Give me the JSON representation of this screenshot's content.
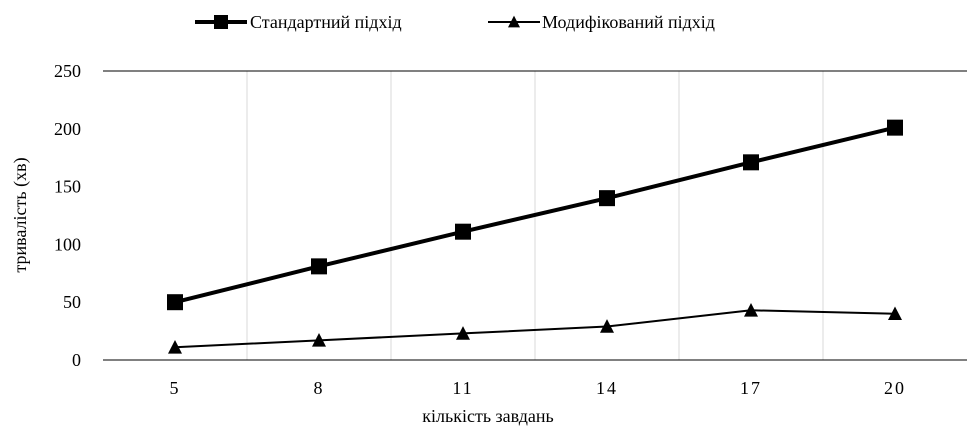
{
  "chart_data": {
    "type": "line",
    "title": "",
    "xlabel": "кількість завдань",
    "ylabel": "тривалість (хв)",
    "categories": [
      "5",
      "8",
      "11",
      "14",
      "17",
      "20"
    ],
    "ylim": [
      0,
      250
    ],
    "yticks": [
      0,
      50,
      100,
      150,
      200,
      250
    ],
    "grid": "vertical",
    "legend_position": "top",
    "series": [
      {
        "name": "Стандартний підхід",
        "marker": "square",
        "color": "#000000",
        "values": [
          50,
          81,
          111,
          140,
          171,
          201
        ]
      },
      {
        "name": "Модифікований підхід",
        "marker": "triangle",
        "color": "#000000",
        "values": [
          11,
          17,
          23,
          29,
          43,
          40
        ]
      }
    ]
  }
}
